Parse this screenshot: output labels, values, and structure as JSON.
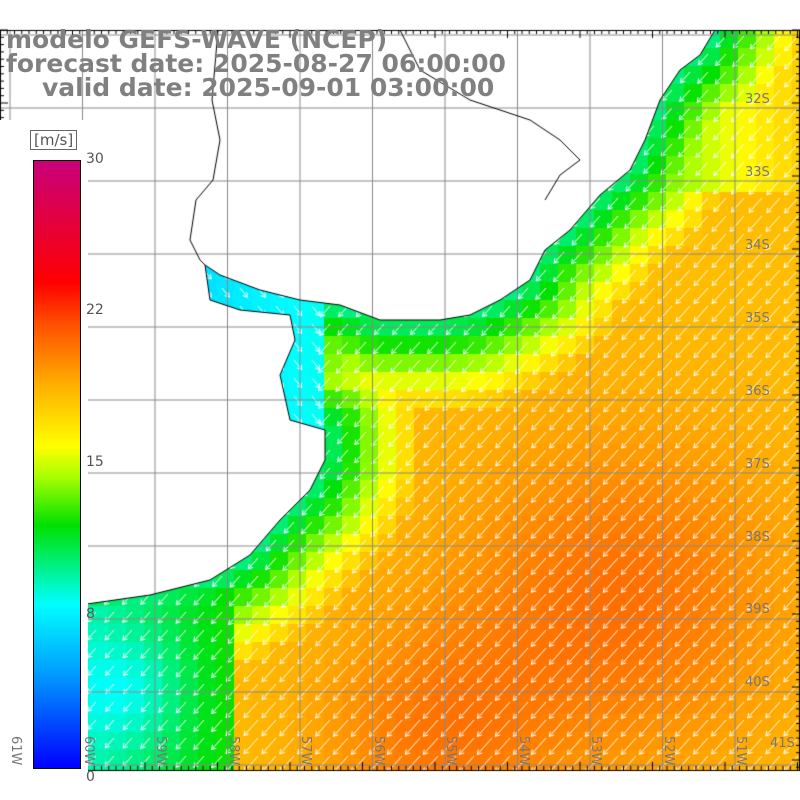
{
  "title": {
    "line1": "modelo GEFS-WAVE (NCEP)",
    "line2": "forecast date: 2025-08-27 06:00:00",
    "line3": "valid date: 2025-09-01 03:00:00"
  },
  "colorbar": {
    "unit": "[m/s]",
    "labels": [
      "30",
      "22",
      "15",
      "8",
      "0"
    ],
    "colors": [
      "#0000ff",
      "#00ffff",
      "#00e000",
      "#ffff00",
      "#ffb000",
      "#ff5000",
      "#ff0000",
      "#c8007a"
    ]
  },
  "lat_labels": [
    "32S",
    "33S",
    "34S",
    "35S",
    "36S",
    "37S",
    "38S",
    "39S",
    "40S",
    "41S"
  ],
  "lon_labels": [
    "61W",
    "60W",
    "59W",
    "58W",
    "57W",
    "56W",
    "55W",
    "54W",
    "53W",
    "52W",
    "51W"
  ]
}
